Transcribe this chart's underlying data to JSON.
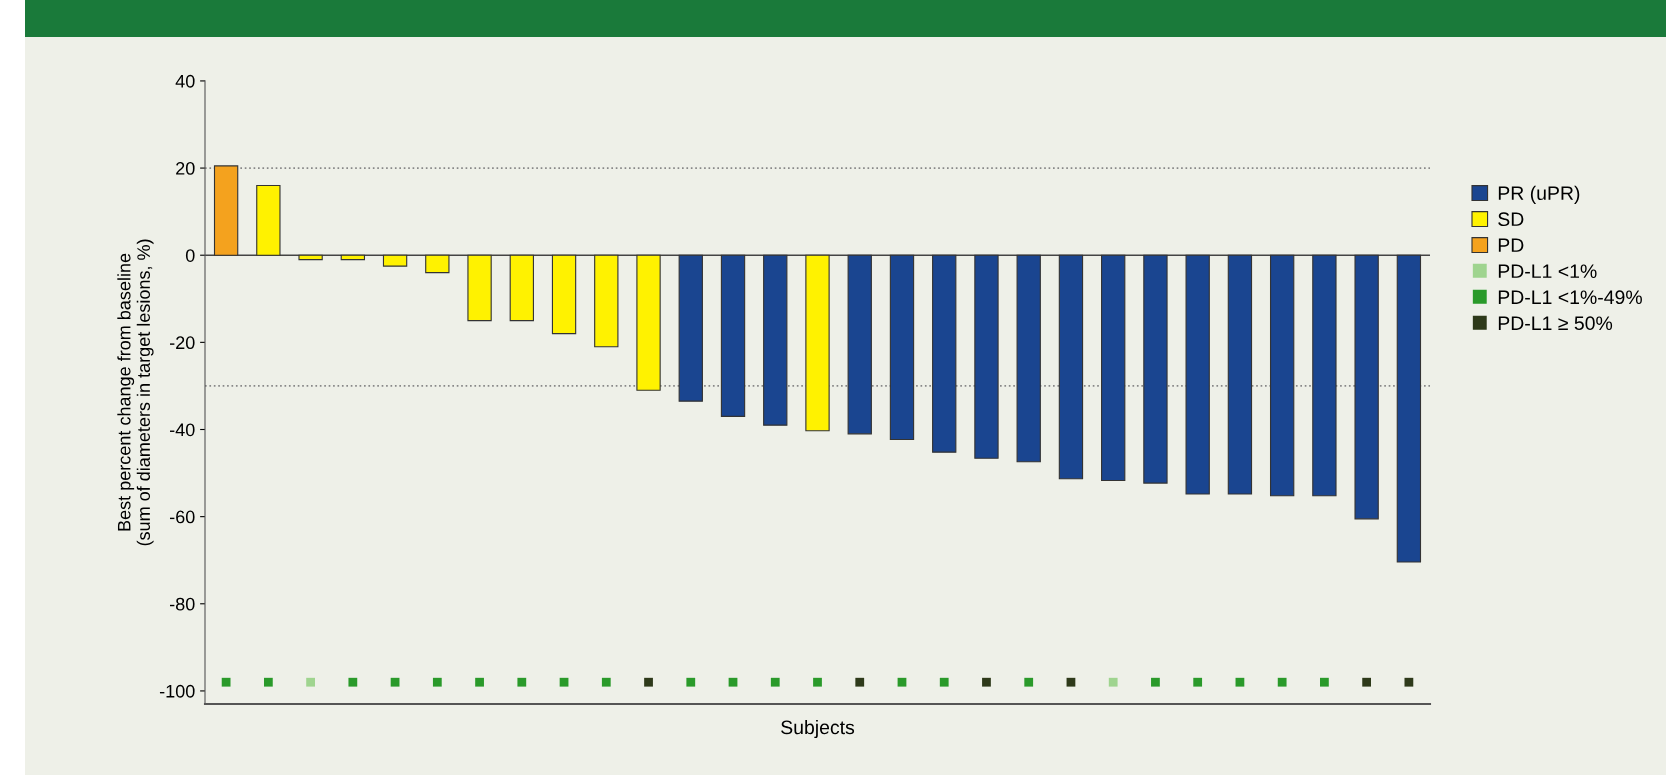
{
  "chart_data": {
    "type": "bar",
    "xlabel": "Subjects",
    "ylabel": "Best percent change from baseline\n(sum of diameters in target lesions, %)",
    "categories": [
      null,
      null,
      null,
      null,
      null,
      null,
      null,
      null,
      null,
      null,
      null,
      null,
      null,
      null,
      null,
      null,
      null,
      null,
      null,
      null,
      null,
      null,
      null,
      null,
      null,
      null,
      null,
      null,
      null
    ],
    "series": [
      {
        "name": "PR (uPR)",
        "color": "#1a4590",
        "values": [
          null,
          null,
          null,
          null,
          null,
          null,
          null,
          null,
          null,
          null,
          null,
          -33.5,
          -37,
          -39,
          null,
          -41,
          -42.3,
          -45.2,
          -46.6,
          -47.4,
          -51.3,
          -51.7,
          -52.3,
          -54.8,
          -54.8,
          -55.2,
          -55.2,
          -60.5,
          -70.4
        ]
      },
      {
        "name": "SD",
        "color": "#fff200",
        "values": [
          null,
          16,
          -1,
          -1,
          -2.5,
          -4,
          -15,
          -15,
          -18,
          -21,
          -31,
          null,
          null,
          null,
          -40.3,
          null,
          null,
          null,
          null,
          null,
          null,
          null,
          null,
          null,
          null,
          null,
          null,
          null,
          null
        ]
      },
      {
        "name": "PD",
        "color": "#f4a21e",
        "values": [
          20.5,
          null,
          null,
          null,
          null,
          null,
          null,
          null,
          null,
          null,
          null,
          null,
          null,
          null,
          null,
          null,
          null,
          null,
          null,
          null,
          null,
          null,
          null,
          null,
          null,
          null,
          null,
          null,
          null
        ]
      },
      {
        "name": "PD-L1 <1%",
        "type": "scatter",
        "marker": "square",
        "color": "#9fd48f",
        "values": [
          null,
          null,
          -98,
          null,
          null,
          null,
          null,
          null,
          null,
          null,
          null,
          null,
          null,
          null,
          null,
          null,
          null,
          null,
          null,
          null,
          null,
          -98,
          null,
          null,
          null,
          null,
          null,
          null,
          null
        ]
      },
      {
        "name": "PD-L1 <1%-49%",
        "type": "scatter",
        "marker": "square",
        "color": "#2a9a2a",
        "values": [
          -98,
          -98,
          null,
          -98,
          -98,
          -98,
          -98,
          -98,
          -98,
          -98,
          null,
          -98,
          -98,
          -98,
          -98,
          null,
          -98,
          -98,
          null,
          -98,
          null,
          null,
          -98,
          -98,
          -98,
          -98,
          -98,
          null,
          null
        ]
      },
      {
        "name": "PD-L1 ≥ 50%",
        "type": "scatter",
        "marker": "square",
        "color": "#2e3a1a",
        "values": [
          null,
          null,
          null,
          null,
          null,
          null,
          null,
          null,
          null,
          null,
          -98,
          null,
          null,
          null,
          null,
          -98,
          null,
          null,
          -98,
          null,
          -98,
          null,
          null,
          null,
          null,
          null,
          null,
          -98,
          -98
        ]
      }
    ],
    "ylim": [
      -103,
      40
    ],
    "yticks": [
      -100,
      -80,
      -60,
      -40,
      -20,
      0,
      20,
      40
    ],
    "ref_lines": [
      {
        "axis": "y",
        "value": 20,
        "color": "#888888",
        "line_style": "dotted"
      },
      {
        "axis": "y",
        "value": -30,
        "color": "#888888",
        "line_style": "dotted"
      },
      {
        "axis": "y",
        "value": 0,
        "color": "#444444",
        "line_style": "solid"
      }
    ],
    "grid": false,
    "legend": "right"
  }
}
